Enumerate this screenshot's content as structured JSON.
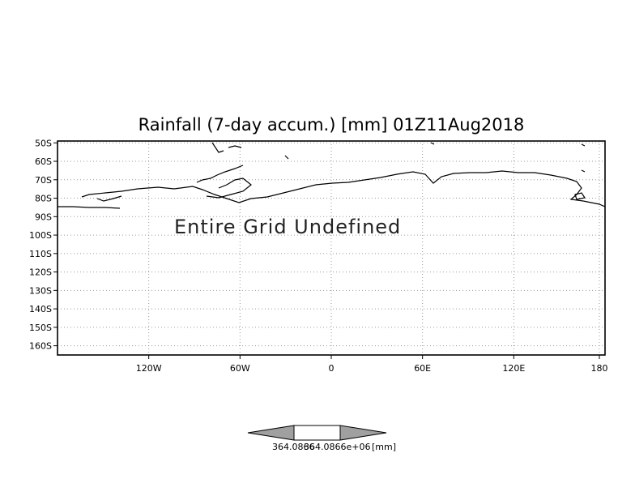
{
  "chart_data": {
    "type": "map",
    "title": "Rainfall (7-day accum.) [mm] 01Z11Aug2018",
    "message": "Entire Grid Undefined",
    "x_ticks": [
      "120W",
      "60W",
      "0",
      "60E",
      "120E",
      "180"
    ],
    "x_tick_values": [
      -120,
      -60,
      0,
      60,
      120,
      180
    ],
    "y_ticks": [
      "50S",
      "60S",
      "70S",
      "80S",
      "90S",
      "100S",
      "110S",
      "120S",
      "130S",
      "140S",
      "150S",
      "160S"
    ],
    "y_tick_values": [
      -50,
      -60,
      -70,
      -80,
      -90,
      -100,
      -110,
      -120,
      -130,
      -140,
      -150,
      -160
    ],
    "xlim": [
      -180,
      180
    ],
    "ylim": [
      -165,
      -49
    ],
    "grid": true,
    "colorbar": {
      "label_left": "364.0866",
      "label_right": "364.0866e+06",
      "unit": "[mm]",
      "fill_color": "#ffffff",
      "arrow_color": "#a0a0a0"
    }
  }
}
